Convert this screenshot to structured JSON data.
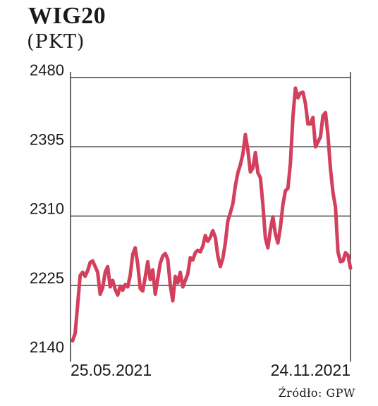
{
  "header": {
    "title": "WIG20",
    "subtitle": "(PKT)"
  },
  "footer": {
    "source": "Źródło: GPW"
  },
  "chart_data": {
    "type": "line",
    "title": "WIG20",
    "subtitle": "(PKT)",
    "ylim": [
      2140,
      2480
    ],
    "yticks": [
      2140,
      2225,
      2310,
      2395,
      2480
    ],
    "xtick_labels": [
      {
        "label": "25.05.2021",
        "pos": "start"
      },
      {
        "label": "24.11.2021",
        "pos": "end"
      }
    ],
    "grid": "horizontal",
    "line_color": "#d2405e",
    "series": [
      {
        "values": [
          2157,
          2166,
          2201,
          2237,
          2241,
          2236,
          2243,
          2253,
          2255,
          2248,
          2241,
          2214,
          2222,
          2241,
          2248,
          2223,
          2231,
          2220,
          2213,
          2224,
          2219,
          2226,
          2223,
          2237,
          2263,
          2271,
          2251,
          2221,
          2218,
          2235,
          2254,
          2232,
          2244,
          2214,
          2233,
          2252,
          2261,
          2264,
          2257,
          2225,
          2206,
          2236,
          2228,
          2241,
          2223,
          2231,
          2239,
          2259,
          2256,
          2265,
          2268,
          2266,
          2273,
          2286,
          2279,
          2284,
          2292,
          2284,
          2261,
          2248,
          2258,
          2277,
          2304,
          2314,
          2325,
          2347,
          2363,
          2373,
          2386,
          2410,
          2391,
          2364,
          2369,
          2388,
          2363,
          2357,
          2324,
          2283,
          2271,
          2293,
          2309,
          2288,
          2277,
          2296,
          2324,
          2341,
          2344,
          2375,
          2432,
          2467,
          2455,
          2461,
          2462,
          2448,
          2423,
          2423,
          2431,
          2395,
          2401,
          2407,
          2433,
          2437,
          2409,
          2368,
          2339,
          2321,
          2266,
          2254,
          2255,
          2265,
          2262,
          2246
        ]
      }
    ],
    "source": "Źródło: GPW"
  }
}
